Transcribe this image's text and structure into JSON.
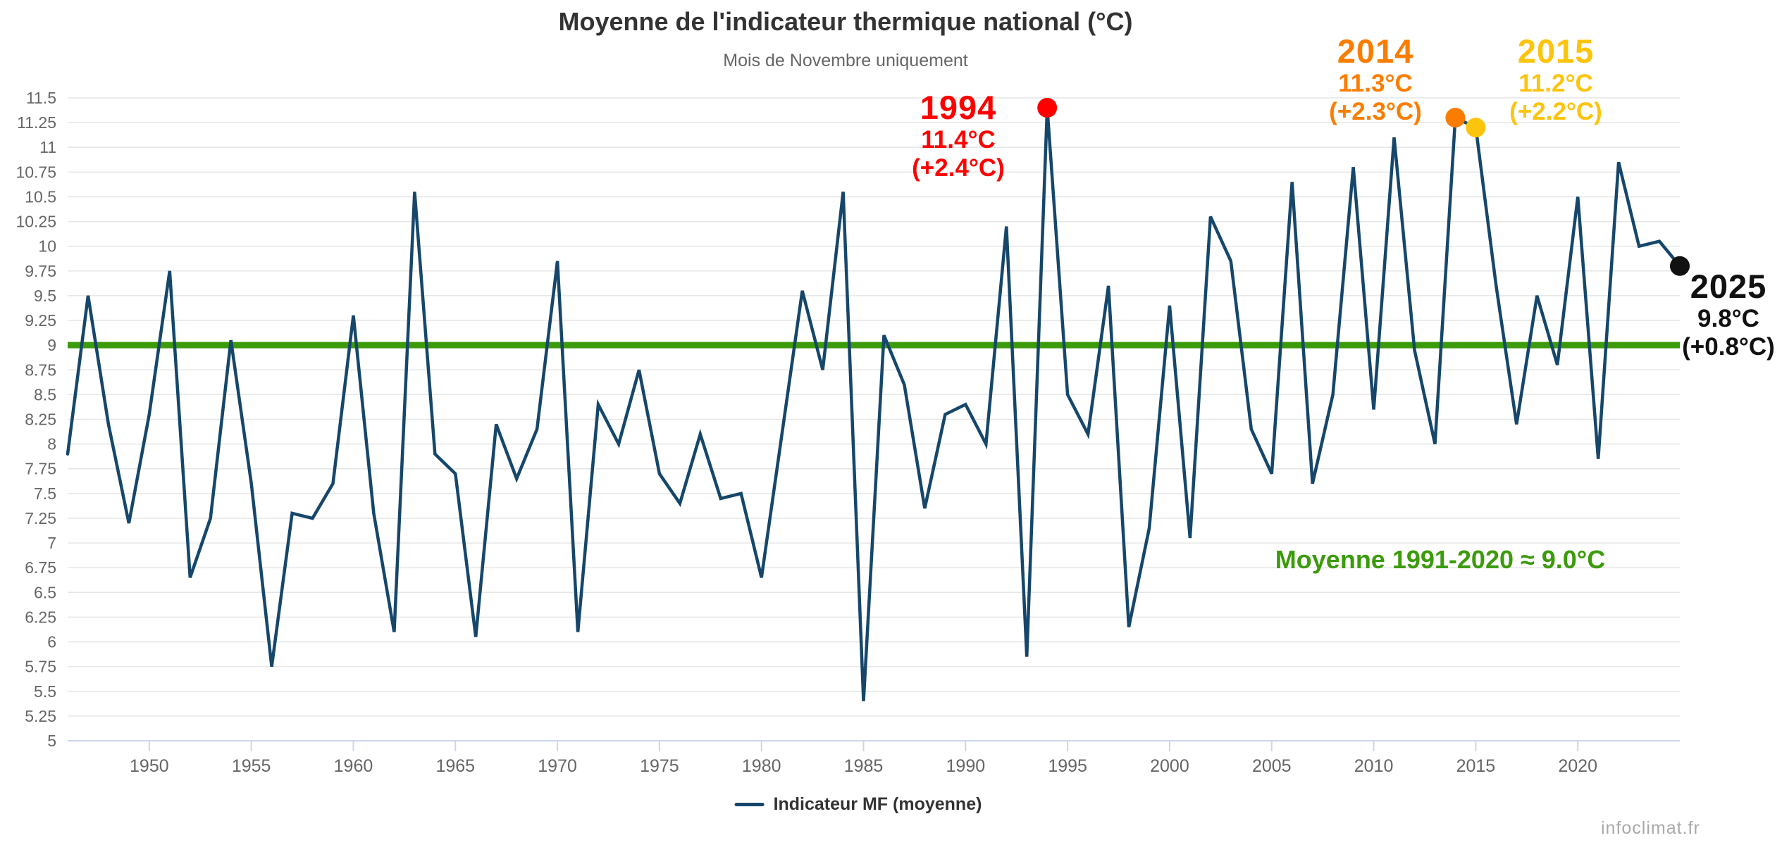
{
  "title": "Moyenne de l'indicateur thermique national (°C)",
  "subtitle": "Mois de Novembre uniquement",
  "legend": {
    "label": "Indicateur MF (moyenne)"
  },
  "watermark": "infoclimat.fr",
  "annotations": {
    "y1994": {
      "year": "1994",
      "temp": "11.4°C",
      "delta": "(+2.4°C)",
      "color": "#ff0000"
    },
    "y2014": {
      "year": "2014",
      "temp": "11.3°C",
      "delta": "(+2.3°C)",
      "color": "#fb7d00"
    },
    "y2015": {
      "year": "2015",
      "temp": "11.2°C",
      "delta": "(+2.2°C)",
      "color": "#fdc40d"
    },
    "y2025": {
      "year": "2025",
      "temp": "9.8°C",
      "delta": "(+0.8°C)",
      "color": "#111111"
    },
    "mean": {
      "text": "Moyenne 1991-2020  ≈ 9.0°C",
      "color": "#3c9b0b"
    }
  },
  "colors": {
    "series": "#16476b",
    "reference_line": "#3c9b0b",
    "grid": "#e6e6e6",
    "axis": "#ccd6eb",
    "axis_labels": "#666666",
    "title": "#333333",
    "subtitle": "#666666",
    "marker_1994": "#ff0000",
    "marker_2014": "#fb7d00",
    "marker_2015": "#fdc40d",
    "marker_2025": "#111111"
  },
  "chart_data": {
    "type": "line",
    "title": "Moyenne de l'indicateur thermique national (°C)",
    "subtitle": "Mois de Novembre uniquement",
    "xlabel": "",
    "ylabel": "",
    "xlim": [
      1946,
      2025
    ],
    "ylim": [
      5,
      11.5
    ],
    "ytick_step": 0.25,
    "grid": true,
    "legend_position": "bottom",
    "xticks": [
      1950,
      1955,
      1960,
      1965,
      1970,
      1975,
      1980,
      1985,
      1990,
      1995,
      2000,
      2005,
      2010,
      2015,
      2020
    ],
    "yticks": [
      "5",
      "5.25",
      "5.5",
      "5.75",
      "6",
      "6.25",
      "6.5",
      "6.75",
      "7",
      "7.25",
      "7.5",
      "7.75",
      "8",
      "8.25",
      "8.5",
      "8.75",
      "9",
      "9.25",
      "9.5",
      "9.75",
      "10",
      "10.25",
      "10.5",
      "10.75",
      "11",
      "11.25",
      "11.5"
    ],
    "series": [
      {
        "name": "Indicateur MF (moyenne)",
        "color": "#16476b",
        "x": [
          1946,
          1947,
          1948,
          1949,
          1950,
          1951,
          1952,
          1953,
          1954,
          1955,
          1956,
          1957,
          1958,
          1959,
          1960,
          1961,
          1962,
          1963,
          1964,
          1965,
          1966,
          1967,
          1968,
          1969,
          1970,
          1971,
          1972,
          1973,
          1974,
          1975,
          1976,
          1977,
          1978,
          1979,
          1980,
          1981,
          1982,
          1983,
          1984,
          1985,
          1986,
          1987,
          1988,
          1989,
          1990,
          1991,
          1992,
          1993,
          1994,
          1995,
          1996,
          1997,
          1998,
          1999,
          2000,
          2001,
          2002,
          2003,
          2004,
          2005,
          2006,
          2007,
          2008,
          2009,
          2010,
          2011,
          2012,
          2013,
          2014,
          2015,
          2016,
          2017,
          2018,
          2019,
          2020,
          2021,
          2022,
          2023,
          2024,
          2025
        ],
        "values": [
          7.9,
          9.5,
          8.2,
          7.2,
          8.3,
          9.75,
          6.65,
          7.25,
          9.05,
          7.6,
          5.75,
          7.3,
          7.25,
          7.6,
          9.3,
          7.3,
          6.1,
          10.55,
          7.9,
          7.7,
          6.05,
          8.2,
          7.65,
          8.15,
          9.85,
          6.1,
          8.4,
          8.0,
          8.75,
          7.7,
          7.4,
          8.1,
          7.45,
          7.5,
          6.65,
          8.1,
          9.55,
          8.75,
          10.55,
          5.4,
          9.1,
          8.6,
          7.35,
          8.3,
          8.4,
          8.0,
          10.2,
          5.85,
          11.4,
          8.5,
          8.1,
          9.6,
          6.15,
          7.15,
          9.4,
          7.05,
          10.3,
          9.85,
          8.15,
          7.7,
          10.65,
          7.6,
          8.5,
          10.8,
          8.35,
          11.1,
          8.95,
          8.0,
          11.3,
          11.2,
          9.6,
          8.2,
          9.5,
          8.8,
          10.5,
          7.85,
          10.85,
          10.0,
          10.05,
          9.8
        ]
      }
    ],
    "reference_line": {
      "label": "Moyenne 1991-2020 ≈ 9.0°C",
      "value": 9.0,
      "color": "#3c9b0b"
    },
    "markers": [
      {
        "year": 1994,
        "value": 11.4,
        "color": "#ff0000"
      },
      {
        "year": 2014,
        "value": 11.3,
        "color": "#fb7d00"
      },
      {
        "year": 2015,
        "value": 11.2,
        "color": "#fdc40d"
      },
      {
        "year": 2025,
        "value": 9.8,
        "color": "#111111"
      }
    ]
  }
}
